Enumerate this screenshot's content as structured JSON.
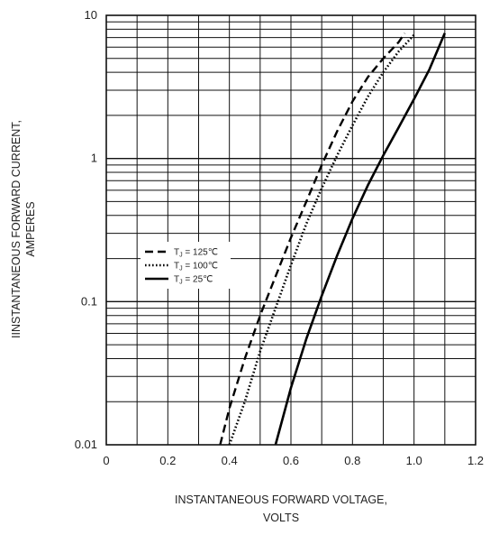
{
  "chart_data": {
    "type": "line",
    "title": "",
    "x_scale": "linear",
    "y_scale": "log",
    "xlim": [
      0,
      1.2
    ],
    "ylim": [
      0.01,
      10
    ],
    "grid": true,
    "legend_position": "left",
    "xlabel_lines": [
      "INSTANTANEOUS FORWARD VOLTAGE,",
      "VOLTS"
    ],
    "ylabel_lines": [
      "IINSTANTANEOUS FORWARD CURRENT,",
      "AMPERES"
    ],
    "x_ticks": [
      0,
      0.2,
      0.4,
      0.6,
      0.8,
      1.0,
      1.2
    ],
    "x_tick_labels": [
      "0",
      "0.2",
      "0.4",
      "0.6",
      "0.8",
      "1.0",
      "1.2"
    ],
    "y_ticks": [
      0.01,
      0.1,
      1,
      10
    ],
    "y_tick_labels": [
      "0.01",
      "0.1",
      "1",
      "10"
    ],
    "series": [
      {
        "name": "TJ = 125℃",
        "legend_main": "T",
        "legend_sub": "J",
        "legend_rest": " = 125℃",
        "style": "dashed",
        "x": [
          0.37,
          0.4,
          0.45,
          0.5,
          0.55,
          0.6,
          0.65,
          0.7,
          0.75,
          0.8,
          0.85,
          0.9,
          0.95,
          0.97
        ],
        "y": [
          0.01,
          0.018,
          0.04,
          0.08,
          0.15,
          0.28,
          0.5,
          0.9,
          1.55,
          2.5,
          3.7,
          5.0,
          6.5,
          7.5
        ]
      },
      {
        "name": "TJ = 100℃",
        "legend_main": "T",
        "legend_sub": "J",
        "legend_rest": " = 100℃",
        "style": "dotted",
        "x": [
          0.4,
          0.45,
          0.5,
          0.55,
          0.6,
          0.65,
          0.7,
          0.75,
          0.8,
          0.85,
          0.9,
          0.95,
          1.0
        ],
        "y": [
          0.01,
          0.02,
          0.045,
          0.09,
          0.18,
          0.35,
          0.62,
          1.05,
          1.7,
          2.7,
          4.0,
          5.6,
          7.3
        ]
      },
      {
        "name": "TJ = 25℃",
        "legend_main": "T",
        "legend_sub": "J",
        "legend_rest": " = 25℃",
        "style": "solid",
        "x": [
          0.55,
          0.6,
          0.65,
          0.7,
          0.75,
          0.8,
          0.85,
          0.9,
          0.95,
          1.0,
          1.05,
          1.1
        ],
        "y": [
          0.01,
          0.025,
          0.055,
          0.11,
          0.21,
          0.38,
          0.65,
          1.05,
          1.65,
          2.6,
          4.2,
          7.5
        ]
      }
    ]
  }
}
